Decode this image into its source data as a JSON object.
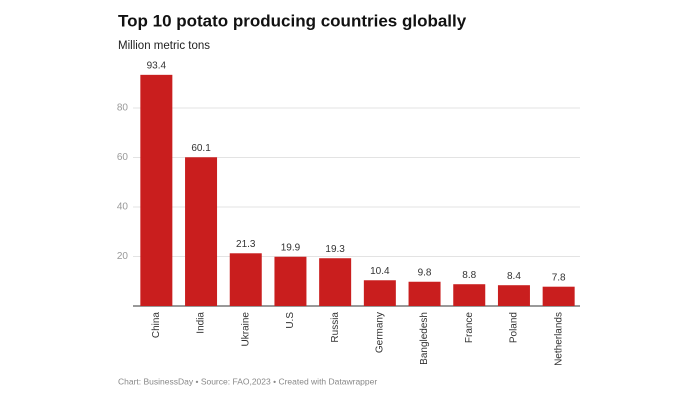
{
  "chart_data": {
    "type": "bar",
    "title": "Top 10 potato producing countries globally",
    "subtitle": "Million metric tons",
    "footer": "Chart: BusinessDay • Source: FAO,2023 • Created with Datawrapper",
    "categories": [
      "China",
      "India",
      "Ukraine",
      "U.S",
      "Russia",
      "Germany",
      "Bangledesh",
      "France",
      "Poland",
      "Netherlands"
    ],
    "values": [
      93.4,
      60.1,
      21.3,
      19.9,
      19.3,
      10.4,
      9.8,
      8.8,
      8.4,
      7.8
    ],
    "color": "#c91e1e",
    "ylim": [
      0,
      100
    ],
    "yticks": [
      20,
      40,
      60,
      80
    ],
    "grid": true
  }
}
